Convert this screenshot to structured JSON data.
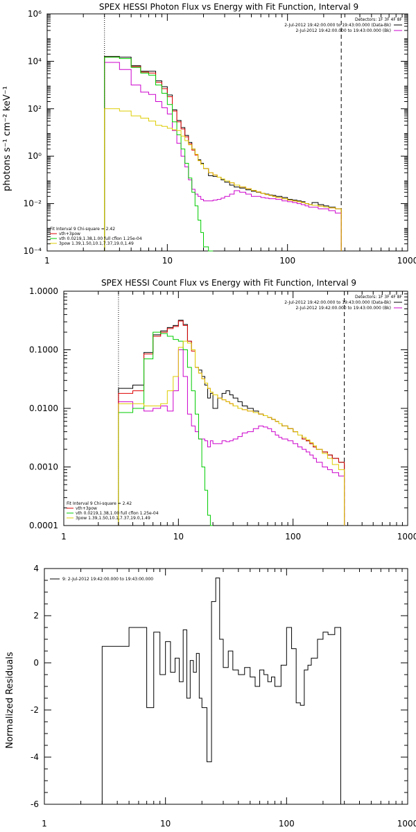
{
  "chart_data": [
    {
      "type": "line",
      "title": "SPEX HESSI Photon Flux vs Energy with Fit Function, Interval 9",
      "ylabel": "photons s⁻¹ cm⁻² keV⁻¹",
      "xscale": "log",
      "yscale": "log",
      "xlim": [
        1,
        1000
      ],
      "ylim": [
        0.0001,
        1000000
      ],
      "x_ticks": [
        "1",
        "10",
        "100",
        "1000"
      ],
      "y_ticks": [
        "10⁻⁴",
        "10⁻²",
        "10⁰",
        "10²",
        "10⁴",
        "10⁶"
      ],
      "legend_top": [
        "Detectors: 1F 3F 4F 8F",
        "2-Jul-2012 19:42:00.000 to 19:43:00.000 (Data-Bk)",
        "2-Jul-2012 19:42:00.000 to 19:43:00.000 (Bk)"
      ],
      "legend_bottom": [
        "Fit Interval 9   Chi-square = 2.42",
        "vth+3pow",
        "vth 0.0219,1.38,1.00  full cflon 1.25e-04",
        "3pow 1.39,1.50,10.1,7.37,19.0,1.49"
      ],
      "vlines": [
        3,
        280
      ],
      "edges": [
        3,
        4,
        5,
        6,
        7,
        8,
        9,
        10,
        11,
        12,
        13,
        14,
        15,
        16,
        17,
        18,
        19,
        20,
        22,
        24,
        26,
        28,
        30,
        33,
        36,
        40,
        45,
        50,
        55,
        60,
        65,
        70,
        75,
        80,
        90,
        100,
        110,
        120,
        130,
        140,
        150,
        160,
        180,
        200,
        220,
        250,
        280
      ],
      "series": [
        {
          "name": "Data-Bk",
          "color": "#000000",
          "values": [
            16000,
            15000,
            6500,
            3800,
            3800,
            1500,
            850,
            380,
            90,
            32,
            16,
            7.5,
            3.8,
            2.0,
            1.2,
            0.7,
            0.5,
            0.3,
            0.15,
            0.14,
            0.13,
            0.1,
            0.08,
            0.06,
            0.05,
            0.045,
            0.038,
            0.033,
            0.03,
            0.027,
            0.025,
            0.023,
            0.022,
            0.02,
            0.018,
            0.015,
            0.014,
            0.013,
            0.012,
            0.01,
            0.009,
            0.011,
            0.009,
            0.008,
            0.007,
            0.006
          ]
        },
        {
          "name": "Bk",
          "color": "#cc00cc",
          "values": [
            9000,
            4500,
            1000,
            500,
            400,
            200,
            110,
            60,
            12,
            3.5,
            1.0,
            0.35,
            0.1,
            0.04,
            0.025,
            0.02,
            0.015,
            0.013,
            0.013,
            0.014,
            0.015,
            0.017,
            0.02,
            0.025,
            0.035,
            0.03,
            0.025,
            0.02,
            0.02,
            0.018,
            0.017,
            0.016,
            0.016,
            0.015,
            0.013,
            0.012,
            0.011,
            0.01,
            0.009,
            0.008,
            0.007,
            0.007,
            0.006,
            0.006,
            0.005,
            0.004
          ]
        },
        {
          "name": "vth+3pow",
          "color": "#dd0000",
          "values": [
            15000,
            13000,
            6000,
            3500,
            3200,
            1300,
            700,
            320,
            80,
            28,
            14,
            6.5,
            3.3,
            1.8,
            1.1,
            0.65,
            0.45,
            0.3,
            0.2,
            0.16,
            0.13,
            0.11,
            0.09,
            0.075,
            0.06,
            0.05,
            0.042,
            0.036,
            0.031,
            0.027,
            0.024,
            0.022,
            0.02,
            0.018,
            0.016,
            0.014,
            0.013,
            0.012,
            0.011,
            0.01,
            0.009,
            0.0085,
            0.0078,
            0.0072,
            0.0066,
            0.006
          ]
        },
        {
          "name": "vth",
          "color": "#00cc00",
          "values": [
            15000,
            13000,
            5500,
            3200,
            2600,
            1000,
            450,
            150,
            28,
            8,
            2.0,
            0.5,
            0.12,
            0.03,
            0.008,
            0.002,
            0.0006,
            0.00015,
            4e-05
          ]
        },
        {
          "name": "3pow",
          "color": "#ddcc00",
          "values": [
            100,
            80,
            50,
            40,
            30,
            20,
            18,
            15,
            13,
            12,
            7,
            4.5,
            3.0,
            2.0,
            1.2,
            0.65,
            0.45,
            0.3,
            0.2,
            0.16,
            0.13,
            0.11,
            0.09,
            0.075,
            0.06,
            0.05,
            0.042,
            0.036,
            0.031,
            0.027,
            0.024,
            0.022,
            0.02,
            0.018,
            0.016,
            0.014,
            0.013,
            0.012,
            0.011,
            0.01,
            0.009,
            0.0085,
            0.0078,
            0.0072,
            0.0066,
            0.006
          ]
        }
      ]
    },
    {
      "type": "line",
      "title": "SPEX HESSI Count Flux vs Energy with Fit Function, Interval 9",
      "ylabel": "",
      "xscale": "log",
      "yscale": "log",
      "xlim": [
        1,
        1000
      ],
      "ylim": [
        0.0001,
        1.0
      ],
      "x_ticks": [
        "1",
        "10",
        "100",
        "1000"
      ],
      "y_ticks": [
        "0.0001",
        "0.0010",
        "0.0100",
        "0.1000",
        "1.0000"
      ],
      "legend_top": [
        "Detectors: 1F 3F 4F 8F",
        "2-Jul-2012 19:42:00.000 to 19:43:00.000 (Data-Bk)",
        "2-Jul-2012 19:42:00.000 to 19:43:00.000 (Bk)"
      ],
      "legend_bottom": [
        "Fit Interval 9   Chi-square = 2.42",
        "vth+3pow",
        "vth 0.0219,1.38,1.00  full cflon 1.25e-04",
        "3pow 1.39,1.50,10.1,7.37,19.0,1.49"
      ],
      "vlines": [
        3,
        280
      ],
      "edges": [
        3,
        4,
        5,
        6,
        7,
        8,
        9,
        10,
        11,
        12,
        13,
        14,
        15,
        16,
        17,
        18,
        19,
        20,
        22,
        24,
        26,
        28,
        30,
        33,
        36,
        40,
        45,
        50,
        55,
        60,
        65,
        70,
        75,
        80,
        90,
        100,
        110,
        120,
        130,
        140,
        150,
        160,
        180,
        200,
        220,
        250,
        280
      ],
      "series": [
        {
          "name": "Data-Bk",
          "color": "#000000",
          "values": [
            0.022,
            0.025,
            0.09,
            0.18,
            0.21,
            0.24,
            0.26,
            0.32,
            0.27,
            0.14,
            0.1,
            0.05,
            0.045,
            0.035,
            0.025,
            0.015,
            0.018,
            0.01,
            0.015,
            0.018,
            0.02,
            0.017,
            0.015,
            0.013,
            0.011,
            0.01,
            0.009,
            0.008,
            0.0075,
            0.007,
            0.0065,
            0.006,
            0.0055,
            0.005,
            0.0045,
            0.004,
            0.0035,
            0.003,
            0.0028,
            0.0025,
            0.0022,
            0.002,
            0.0018,
            0.0016,
            0.0014,
            0.0012
          ]
        },
        {
          "name": "Bk",
          "color": "#cc00cc",
          "values": [
            0.013,
            0.01,
            0.009,
            0.01,
            0.011,
            0.009,
            0.02,
            0.1,
            0.035,
            0.008,
            0.005,
            0.004,
            0.003,
            0.003,
            0.0028,
            0.0022,
            0.0028,
            0.0025,
            0.0025,
            0.0028,
            0.0027,
            0.0028,
            0.003,
            0.0033,
            0.0038,
            0.004,
            0.0045,
            0.005,
            0.0048,
            0.0045,
            0.004,
            0.0035,
            0.0032,
            0.003,
            0.0028,
            0.0025,
            0.0022,
            0.002,
            0.0018,
            0.0016,
            0.0014,
            0.0012,
            0.001,
            0.0009,
            0.0008,
            0.0007
          ]
        },
        {
          "name": "vth+3pow",
          "color": "#dd0000",
          "values": [
            0.018,
            0.02,
            0.085,
            0.17,
            0.2,
            0.23,
            0.25,
            0.31,
            0.26,
            0.14,
            0.095,
            0.05,
            0.04,
            0.032,
            0.027,
            0.022,
            0.019,
            0.017,
            0.015,
            0.014,
            0.013,
            0.012,
            0.011,
            0.01,
            0.0095,
            0.009,
            0.0085,
            0.008,
            0.0075,
            0.007,
            0.0065,
            0.006,
            0.0055,
            0.005,
            0.0045,
            0.004,
            0.0035,
            0.003,
            0.0028,
            0.0025,
            0.0022,
            0.002,
            0.0018,
            0.0016,
            0.0014,
            0.0012
          ]
        },
        {
          "name": "vth",
          "color": "#00cc00",
          "values": [
            0.0085,
            0.01,
            0.07,
            0.2,
            0.19,
            0.17,
            0.15,
            0.14,
            0.1,
            0.05,
            0.02,
            0.008,
            0.003,
            0.001,
            0.0004,
            0.00015,
            5e-05
          ]
        },
        {
          "name": "3pow",
          "color": "#ddcc00",
          "values": [
            0.012,
            0.012,
            0.011,
            0.011,
            0.012,
            0.02,
            0.035,
            0.11,
            0.14,
            0.13,
            0.1,
            0.05,
            0.04,
            0.032,
            0.027,
            0.022,
            0.019,
            0.017,
            0.015,
            0.014,
            0.013,
            0.012,
            0.011,
            0.01,
            0.0095,
            0.009,
            0.0085,
            0.008,
            0.0075,
            0.007,
            0.0065,
            0.006,
            0.0055,
            0.005,
            0.0045,
            0.004,
            0.0035,
            0.0032,
            0.0029,
            0.0026,
            0.0023,
            0.002,
            0.0017,
            0.0014,
            0.0011,
            0.0009
          ]
        }
      ]
    },
    {
      "type": "line",
      "title": "",
      "ylabel": "Normalized Residuals",
      "xscale": "log",
      "yscale": "linear",
      "xlim": [
        1,
        1000
      ],
      "ylim": [
        -6,
        4
      ],
      "x_ticks": [
        "1",
        "10",
        "100",
        "1000"
      ],
      "y_ticks": [
        "-6",
        "-4",
        "-2",
        "0",
        "2",
        "4"
      ],
      "legend_top": [
        "9:  2-Jul-2012 19:42:00.000 to 19:43:00.000"
      ],
      "legend_bottom": [],
      "edges": [
        3,
        4,
        5,
        6,
        7,
        8,
        9,
        10,
        11,
        12,
        13,
        14,
        15,
        16,
        17,
        18,
        19,
        20,
        22,
        24,
        26,
        28,
        30,
        33,
        36,
        40,
        45,
        50,
        55,
        60,
        65,
        70,
        75,
        80,
        90,
        100,
        110,
        120,
        130,
        140,
        150,
        160,
        180,
        200,
        220,
        250,
        280
      ],
      "series": [
        {
          "name": "residuals",
          "color": "#000000",
          "values": [
            0.7,
            0.7,
            1.5,
            1.5,
            -1.9,
            1.3,
            -0.5,
            0.9,
            -0.4,
            0.2,
            -0.8,
            1.4,
            -1.5,
            0.1,
            -0.4,
            0.4,
            -1.5,
            -1.9,
            -4.2,
            2.6,
            3.6,
            1.0,
            -0.2,
            0.5,
            -0.3,
            -0.5,
            -0.2,
            -0.6,
            -1.0,
            -0.3,
            -0.5,
            -0.8,
            -0.6,
            -1.0,
            -0.1,
            1.5,
            0.6,
            -1.7,
            -1.8,
            -0.3,
            -0.1,
            0.2,
            1.0,
            1.3,
            1.2,
            1.5
          ]
        }
      ]
    }
  ]
}
